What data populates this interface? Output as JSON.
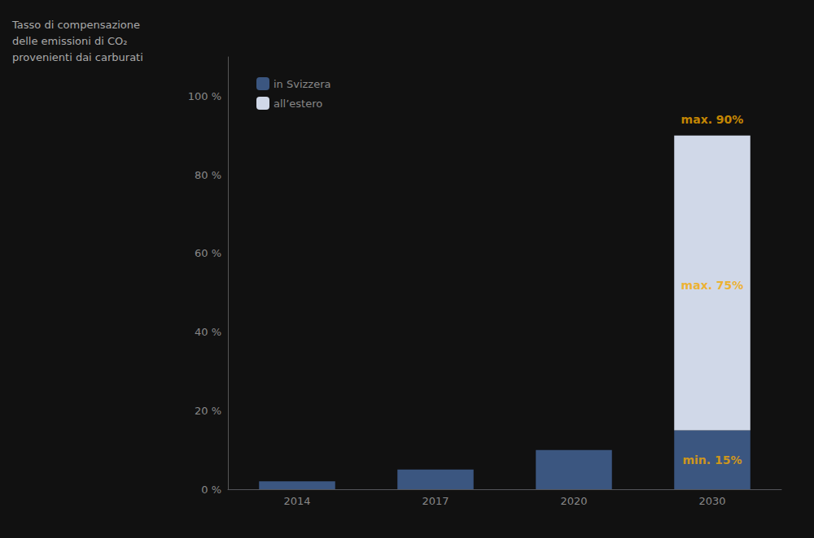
{
  "chart_data": {
    "type": "bar",
    "title": "Tasso di compensazione\ndelle emissioni di CO₂\nprovenienti dai carburati",
    "categories": [
      "2014",
      "2017",
      "2020",
      "2030"
    ],
    "series": [
      {
        "name": "in Svizzera",
        "color": "#3b5680",
        "values": [
          2,
          5,
          10,
          15
        ]
      },
      {
        "name": "all’estero",
        "color": "#d0d8e8",
        "values": [
          0,
          0,
          0,
          75
        ]
      }
    ],
    "stacked": true,
    "ylim": [
      0,
      110
    ],
    "yticks": [
      {
        "value": 0,
        "label": "0 %"
      },
      {
        "value": 20,
        "label": "20 %"
      },
      {
        "value": 40,
        "label": "40 %"
      },
      {
        "value": 60,
        "label": "60 %"
      },
      {
        "value": 80,
        "label": "80 %"
      },
      {
        "value": 100,
        "label": "100 %"
      }
    ],
    "grid": false,
    "legend": "upper left",
    "annotations": [
      {
        "text": "max. 90%",
        "x": "2030",
        "y": 94,
        "color": "#f5a800"
      },
      {
        "text": "max. 75%",
        "x": "2030",
        "y": 52,
        "color": "#f5a800"
      },
      {
        "text": "min. 15%",
        "x": "2030",
        "y": 7.5,
        "color": "#f5a800"
      }
    ]
  }
}
